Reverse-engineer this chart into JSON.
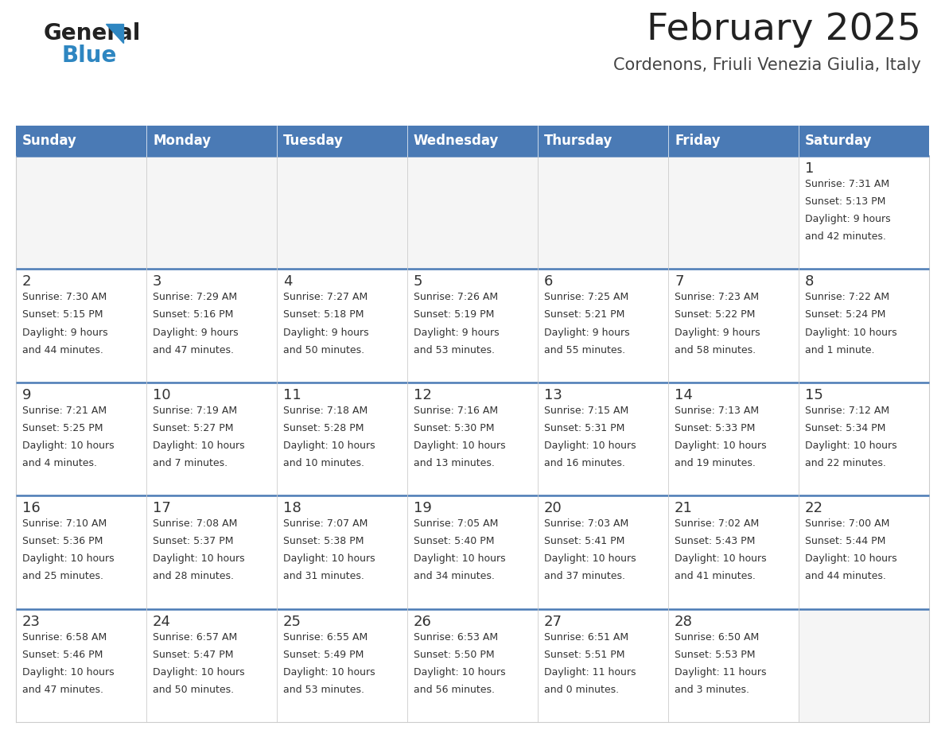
{
  "title": "February 2025",
  "subtitle": "Cordenons, Friuli Venezia Giulia, Italy",
  "header_color": "#4a7ab5",
  "header_text_color": "#FFFFFF",
  "title_color": "#222222",
  "subtitle_color": "#444444",
  "day_headers": [
    "Sunday",
    "Monday",
    "Tuesday",
    "Wednesday",
    "Thursday",
    "Friday",
    "Saturday"
  ],
  "background_color": "#FFFFFF",
  "cell_bg_color": "#FFFFFF",
  "empty_cell_bg": "#f5f5f5",
  "separator_color": "#4a7ab5",
  "day_number_color": "#333333",
  "info_color": "#333333",
  "grid_line_color": "#cccccc",
  "calendar": [
    [
      null,
      null,
      null,
      null,
      null,
      null,
      {
        "day": 1,
        "sunrise": "7:31 AM",
        "sunset": "5:13 PM",
        "daylight": "9 hours and 42 minutes."
      }
    ],
    [
      {
        "day": 2,
        "sunrise": "7:30 AM",
        "sunset": "5:15 PM",
        "daylight": "9 hours and 44 minutes."
      },
      {
        "day": 3,
        "sunrise": "7:29 AM",
        "sunset": "5:16 PM",
        "daylight": "9 hours and 47 minutes."
      },
      {
        "day": 4,
        "sunrise": "7:27 AM",
        "sunset": "5:18 PM",
        "daylight": "9 hours and 50 minutes."
      },
      {
        "day": 5,
        "sunrise": "7:26 AM",
        "sunset": "5:19 PM",
        "daylight": "9 hours and 53 minutes."
      },
      {
        "day": 6,
        "sunrise": "7:25 AM",
        "sunset": "5:21 PM",
        "daylight": "9 hours and 55 minutes."
      },
      {
        "day": 7,
        "sunrise": "7:23 AM",
        "sunset": "5:22 PM",
        "daylight": "9 hours and 58 minutes."
      },
      {
        "day": 8,
        "sunrise": "7:22 AM",
        "sunset": "5:24 PM",
        "daylight": "10 hours and 1 minute."
      }
    ],
    [
      {
        "day": 9,
        "sunrise": "7:21 AM",
        "sunset": "5:25 PM",
        "daylight": "10 hours and 4 minutes."
      },
      {
        "day": 10,
        "sunrise": "7:19 AM",
        "sunset": "5:27 PM",
        "daylight": "10 hours and 7 minutes."
      },
      {
        "day": 11,
        "sunrise": "7:18 AM",
        "sunset": "5:28 PM",
        "daylight": "10 hours and 10 minutes."
      },
      {
        "day": 12,
        "sunrise": "7:16 AM",
        "sunset": "5:30 PM",
        "daylight": "10 hours and 13 minutes."
      },
      {
        "day": 13,
        "sunrise": "7:15 AM",
        "sunset": "5:31 PM",
        "daylight": "10 hours and 16 minutes."
      },
      {
        "day": 14,
        "sunrise": "7:13 AM",
        "sunset": "5:33 PM",
        "daylight": "10 hours and 19 minutes."
      },
      {
        "day": 15,
        "sunrise": "7:12 AM",
        "sunset": "5:34 PM",
        "daylight": "10 hours and 22 minutes."
      }
    ],
    [
      {
        "day": 16,
        "sunrise": "7:10 AM",
        "sunset": "5:36 PM",
        "daylight": "10 hours and 25 minutes."
      },
      {
        "day": 17,
        "sunrise": "7:08 AM",
        "sunset": "5:37 PM",
        "daylight": "10 hours and 28 minutes."
      },
      {
        "day": 18,
        "sunrise": "7:07 AM",
        "sunset": "5:38 PM",
        "daylight": "10 hours and 31 minutes."
      },
      {
        "day": 19,
        "sunrise": "7:05 AM",
        "sunset": "5:40 PM",
        "daylight": "10 hours and 34 minutes."
      },
      {
        "day": 20,
        "sunrise": "7:03 AM",
        "sunset": "5:41 PM",
        "daylight": "10 hours and 37 minutes."
      },
      {
        "day": 21,
        "sunrise": "7:02 AM",
        "sunset": "5:43 PM",
        "daylight": "10 hours and 41 minutes."
      },
      {
        "day": 22,
        "sunrise": "7:00 AM",
        "sunset": "5:44 PM",
        "daylight": "10 hours and 44 minutes."
      }
    ],
    [
      {
        "day": 23,
        "sunrise": "6:58 AM",
        "sunset": "5:46 PM",
        "daylight": "10 hours and 47 minutes."
      },
      {
        "day": 24,
        "sunrise": "6:57 AM",
        "sunset": "5:47 PM",
        "daylight": "10 hours and 50 minutes."
      },
      {
        "day": 25,
        "sunrise": "6:55 AM",
        "sunset": "5:49 PM",
        "daylight": "10 hours and 53 minutes."
      },
      {
        "day": 26,
        "sunrise": "6:53 AM",
        "sunset": "5:50 PM",
        "daylight": "10 hours and 56 minutes."
      },
      {
        "day": 27,
        "sunrise": "6:51 AM",
        "sunset": "5:51 PM",
        "daylight": "11 hours and 0 minutes."
      },
      {
        "day": 28,
        "sunrise": "6:50 AM",
        "sunset": "5:53 PM",
        "daylight": "11 hours and 3 minutes."
      },
      null
    ]
  ],
  "logo_general_color": "#222222",
  "logo_blue_color": "#2E86C1",
  "logo_triangle_color": "#2E86C1",
  "title_fontsize": 34,
  "subtitle_fontsize": 15,
  "header_fontsize": 12,
  "day_number_fontsize": 13,
  "info_fontsize": 9
}
